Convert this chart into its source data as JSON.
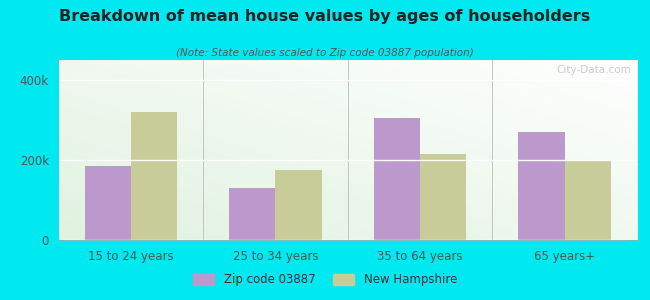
{
  "title": "Breakdown of mean house values by ages of householders",
  "subtitle": "(Note: State values scaled to Zip code 03887 population)",
  "categories": [
    "15 to 24 years",
    "25 to 34 years",
    "35 to 64 years",
    "65 years+"
  ],
  "zip_values": [
    185000,
    130000,
    305000,
    270000
  ],
  "state_values": [
    320000,
    175000,
    215000,
    198000
  ],
  "zip_color": "#bb99cc",
  "state_color": "#c8cc99",
  "background_outer": "#00e8f0",
  "ylim": [
    0,
    450000
  ],
  "yticks": [
    0,
    200000,
    400000
  ],
  "ytick_labels": [
    "0",
    "200k",
    "400k"
  ],
  "bar_width": 0.32,
  "watermark": "City-Data.com",
  "legend_zip": "Zip code 03887",
  "legend_state": "New Hampshire",
  "title_color": "#222222",
  "subtitle_color": "#555555",
  "tick_color": "#555555"
}
